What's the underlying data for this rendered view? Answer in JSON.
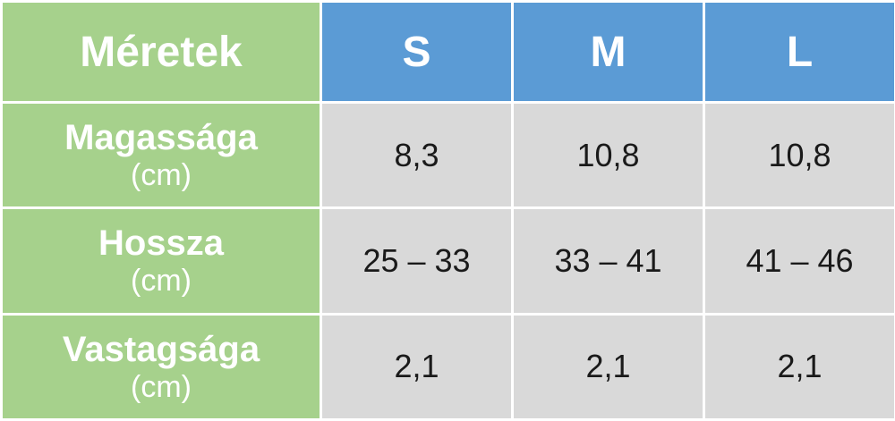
{
  "table": {
    "header": {
      "label": "Méretek",
      "sizes": [
        "S",
        "M",
        "L"
      ]
    },
    "rows": [
      {
        "name": "Magassága",
        "unit": "(cm)",
        "values": [
          "8,3",
          "10,8",
          "10,8"
        ]
      },
      {
        "name": "Hossza",
        "unit": "(cm)",
        "values": [
          "25 – 33",
          "33 – 41",
          "41 – 46"
        ]
      },
      {
        "name": "Vastagsága",
        "unit": "(cm)",
        "values": [
          "2,1",
          "2,1",
          "2,1"
        ]
      }
    ]
  },
  "colors": {
    "label_bg": "#a6d18c",
    "header_bg": "#5b9bd5",
    "cell_bg": "#d9d9d9",
    "header_text": "#ffffff"
  }
}
